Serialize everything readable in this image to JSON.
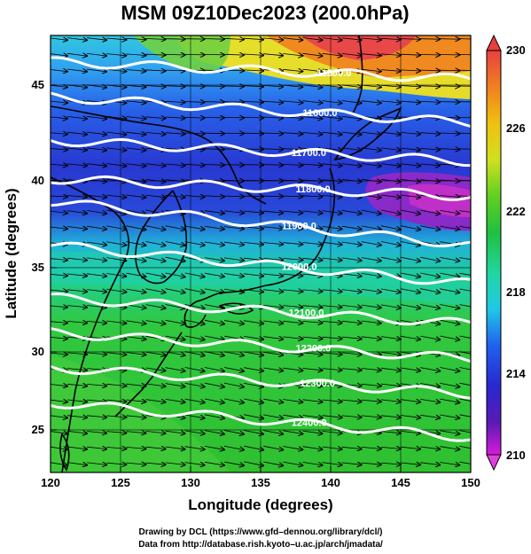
{
  "title": "MSM 09Z10Dec2023 (200.0hPa)",
  "xlabel": "Longitude (degrees)",
  "ylabel": "Latitude  (degrees)",
  "x_ticks": [
    "120",
    "125",
    "130",
    "135",
    "140",
    "145",
    "150"
  ],
  "y_ticks": [
    "25",
    "30",
    "35",
    "40",
    "45"
  ],
  "colorbar": {
    "ticks": [
      "230",
      "226",
      "222",
      "218",
      "214",
      "210"
    ],
    "range": [
      210,
      230
    ],
    "colors": [
      "#d81ad8",
      "#5a1ab4",
      "#2828d0",
      "#2060f0",
      "#20c8e6",
      "#20d6a0",
      "#20c040",
      "#60d020",
      "#d0e020",
      "#f0c010",
      "#f08020",
      "#e84040"
    ]
  },
  "contour_labels": [
    "11500.0",
    "11600.0",
    "11700.0",
    "11800.0",
    "11900.0",
    "12000.0",
    "12100.0",
    "12200.0",
    "12300.0",
    "12400.0"
  ],
  "credits": [
    "Drawing by DCL (https://www.gfd–dennou.org/library/dcl/)",
    "Data from http://database.rish.kyoto–u.ac.jp/arch/jmadata/"
  ],
  "chart_data": {
    "type": "heatmap",
    "title": "MSM 09Z10Dec2023 (200.0hPa)",
    "xlabel": "Longitude (degrees)",
    "ylabel": "Latitude  (degrees)",
    "xlim": [
      120,
      150
    ],
    "ylim": [
      22.5,
      47.5
    ],
    "color_range": [
      210,
      230
    ],
    "contours": [
      {
        "label": "11500.0",
        "lat_west": 46.0,
        "lat_east": 45.0
      },
      {
        "label": "11600.0",
        "lat_west": 44.0,
        "lat_east": 42.5
      },
      {
        "label": "11700.0",
        "lat_west": 41.5,
        "lat_east": 40.3
      },
      {
        "label": "11800.0",
        "lat_west": 39.3,
        "lat_east": 38.3
      },
      {
        "label": "11900.0",
        "lat_west": 38.0,
        "lat_east": 35.5
      },
      {
        "label": "12000.0",
        "lat_west": 35.5,
        "lat_east": 33.3
      },
      {
        "label": "12100.0",
        "lat_west": 32.5,
        "lat_east": 31.0
      },
      {
        "label": "12200.0",
        "lat_west": 30.5,
        "lat_east": 29.0
      },
      {
        "label": "12300.0",
        "lat_west": 28.5,
        "lat_east": 27.0
      },
      {
        "label": "12400.0",
        "lat_west": 26.5,
        "lat_east": 24.5
      }
    ]
  }
}
